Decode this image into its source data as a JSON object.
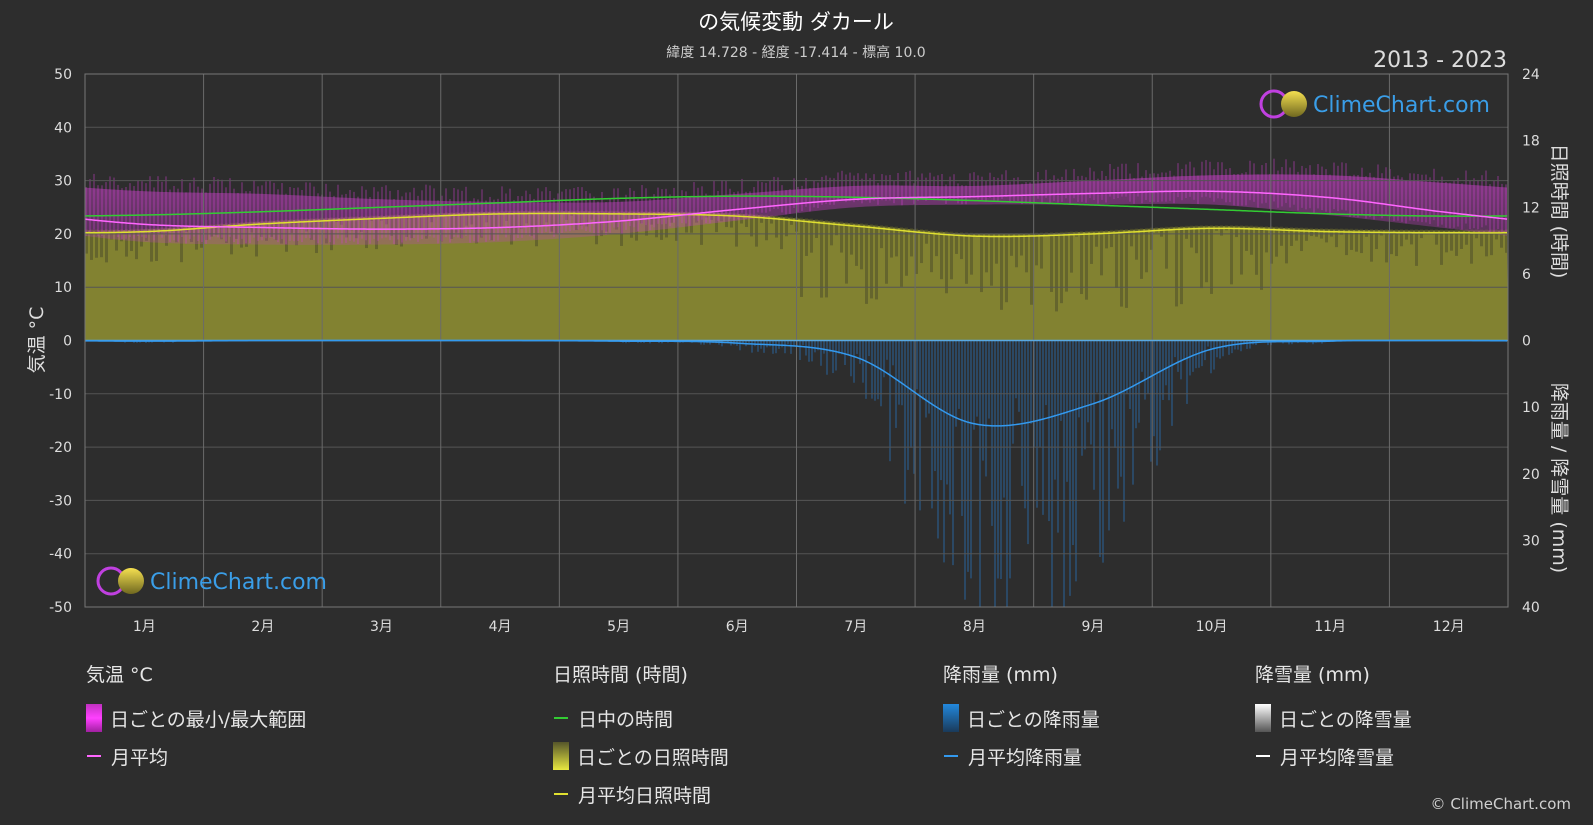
{
  "title": "の気候変動 ダカール",
  "subtitle": "緯度 14.728 - 経度 -17.414 - 標高 10.0",
  "period": "2013 - 2023",
  "watermark": "ClimeChart.com",
  "copyright": "© ClimeChart.com",
  "chart_data": {
    "type": "line",
    "months": [
      "1月",
      "2月",
      "3月",
      "4月",
      "5月",
      "6月",
      "7月",
      "8月",
      "9月",
      "10月",
      "11月",
      "12月"
    ],
    "y_left": {
      "label": "気温 °C",
      "range": [
        -50,
        50
      ],
      "ticks": [
        50,
        40,
        30,
        20,
        10,
        0,
        -10,
        -20,
        -30,
        -40,
        -50
      ]
    },
    "y_right_top": {
      "label": "日照時間 (時間)",
      "range": [
        0,
        24
      ],
      "ticks": [
        24,
        18,
        12,
        6,
        0
      ]
    },
    "y_right_bottom": {
      "label": "降雨量 / 降雪量 (mm)",
      "range": [
        0,
        40
      ],
      "ticks": [
        0,
        10,
        20,
        30,
        40
      ]
    },
    "series": [
      {
        "name": "日中の時間",
        "color": "#33cc33",
        "unit": "hours",
        "values": [
          11.3,
          11.6,
          12.0,
          12.4,
          12.8,
          13.0,
          12.9,
          12.6,
          12.2,
          11.8,
          11.4,
          11.2
        ]
      },
      {
        "name": "月平均日照時間",
        "color": "#e0e030",
        "unit": "hours",
        "values": [
          9.8,
          10.5,
          11.0,
          11.4,
          11.4,
          11.2,
          10.3,
          9.4,
          9.6,
          10.1,
          9.8,
          9.7
        ]
      },
      {
        "name": "月平均",
        "color": "#ff66ff",
        "unit": "°C",
        "values": [
          21.8,
          21.2,
          20.9,
          21.2,
          22.4,
          24.6,
          26.5,
          27.0,
          27.6,
          28.0,
          26.8,
          24.0
        ]
      },
      {
        "name": "月平均降雨量",
        "color": "#3399ee",
        "unit": "mm",
        "values": [
          0.1,
          0.0,
          0.0,
          0.0,
          0.1,
          0.4,
          2.5,
          12.5,
          9.5,
          1.3,
          0.1,
          0.0
        ]
      },
      {
        "name": "月平均降雪量",
        "color": "#ffffff",
        "unit": "mm",
        "values": [
          0,
          0,
          0,
          0,
          0,
          0,
          0,
          0,
          0,
          0,
          0,
          0
        ]
      }
    ],
    "daily_temp_range": {
      "min": [
        18.5,
        18.0,
        18.0,
        18.5,
        20.0,
        22.5,
        25.0,
        25.5,
        25.5,
        25.5,
        23.5,
        21.0
      ],
      "max": [
        28.0,
        27.5,
        26.5,
        26.0,
        26.0,
        27.5,
        29.0,
        29.0,
        30.0,
        31.0,
        31.0,
        29.5
      ]
    },
    "grid": true,
    "legend_placement": "bottom"
  },
  "legend": {
    "groups": [
      {
        "title": "気温 °C",
        "items": [
          {
            "label": "日ごとの最小/最大範囲",
            "kind": "box",
            "color": "#e040e0"
          },
          {
            "label": "月平均",
            "kind": "line",
            "color": "#ff66ff"
          }
        ]
      },
      {
        "title": "日照時間 (時間)",
        "items": [
          {
            "label": "日中の時間",
            "kind": "line",
            "color": "#33cc33"
          },
          {
            "label": "日ごとの日照時間",
            "kind": "box",
            "color": "#d8d840"
          },
          {
            "label": "月平均日照時間",
            "kind": "line",
            "color": "#e0e030"
          }
        ]
      },
      {
        "title": "降雨量 (mm)",
        "items": [
          {
            "label": "日ごとの降雨量",
            "kind": "box",
            "color": "#2288dd"
          },
          {
            "label": "月平均降雨量",
            "kind": "line",
            "color": "#3399ee"
          }
        ]
      },
      {
        "title": "降雪量 (mm)",
        "items": [
          {
            "label": "日ごとの降雪量",
            "kind": "box",
            "color": "#dddddd"
          },
          {
            "label": "月平均降雪量",
            "kind": "line",
            "color": "#ffffff"
          }
        ]
      }
    ]
  }
}
